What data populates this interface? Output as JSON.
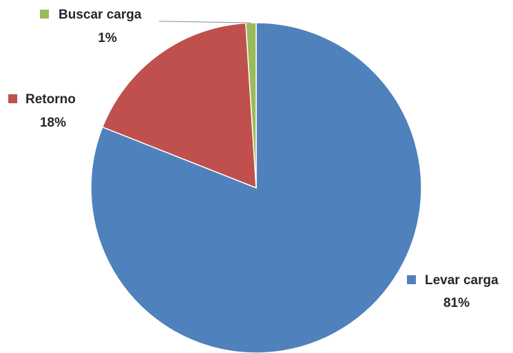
{
  "chart_data": {
    "type": "pie",
    "title": "",
    "categories": [
      "Levar carga",
      "Retorno",
      "Buscar carga"
    ],
    "values": [
      81,
      18,
      1
    ],
    "value_labels": [
      "81%",
      "18%",
      "1%"
    ],
    "colors": [
      "#4f81bd",
      "#c0504d",
      "#9bbb59"
    ],
    "start_angle_deg": 0,
    "direction": "clockwise",
    "legend": "none",
    "data_labels": "category-name-and-percent-outside-with-marker"
  }
}
